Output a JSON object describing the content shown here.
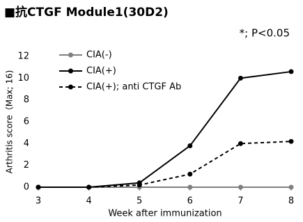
{
  "chart_data": {
    "type": "line",
    "title": "■抗CTGF Module1(30D2)",
    "annotation": "*; P<0.05",
    "x_label": "Week after immunization",
    "y_label": "Arthritis score（Max; 16)",
    "x": [
      3,
      4,
      5,
      6,
      7,
      8
    ],
    "xlim": [
      3,
      8
    ],
    "xticks": [
      3,
      4,
      5,
      6,
      7,
      8
    ],
    "ylim": [
      0,
      12
    ],
    "yticks": [
      0,
      2,
      4,
      6,
      8,
      10,
      12
    ],
    "series": [
      {
        "name": "CIA(-)",
        "color": "#7f7f7f",
        "style": "solid",
        "values": [
          0,
          0,
          0,
          0,
          0,
          0
        ]
      },
      {
        "name": "CIA(+)",
        "color": "#000000",
        "style": "solid",
        "values": [
          0,
          0,
          0.4,
          3.8,
          10,
          10.6
        ]
      },
      {
        "name": "CIA(+); anti CTGF Ab",
        "color": "#000000",
        "style": "dashed",
        "values": [
          0,
          0,
          0.2,
          1.2,
          4,
          4.2
        ]
      }
    ]
  }
}
